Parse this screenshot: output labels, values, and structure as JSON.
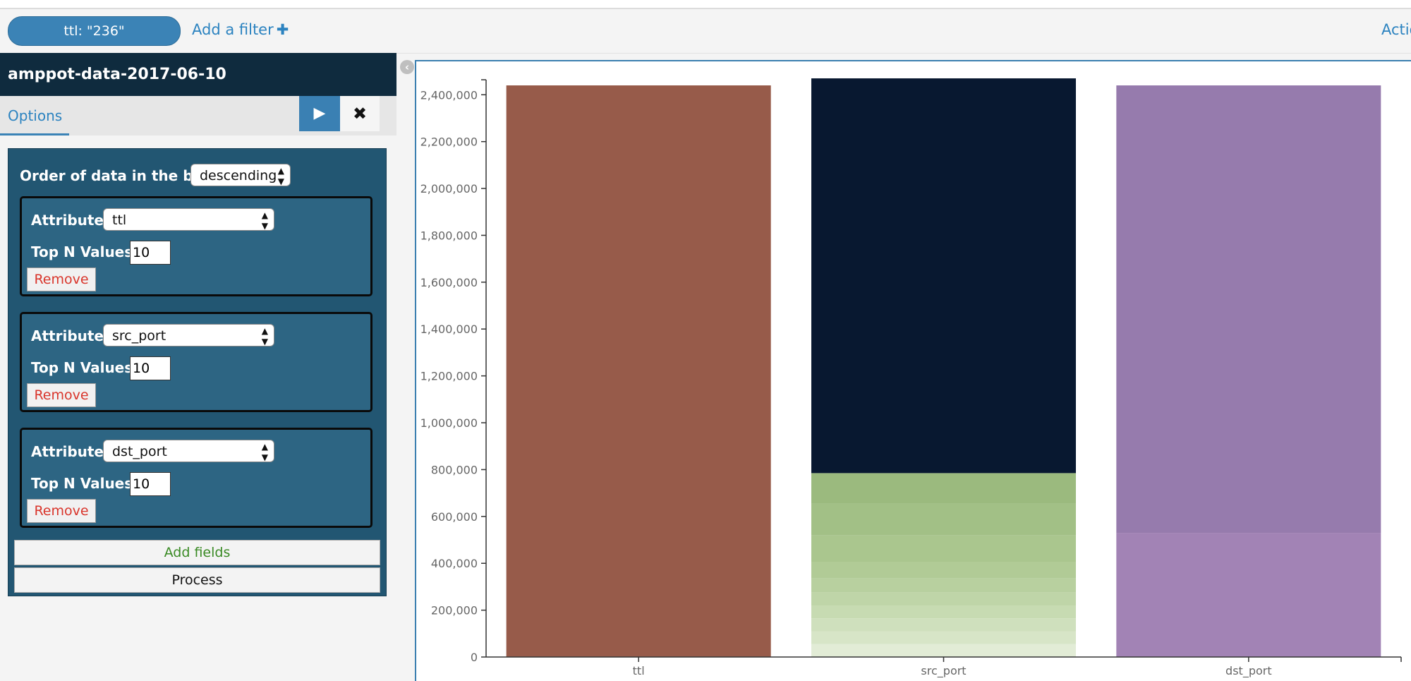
{
  "filter_bar": {
    "pill_label": "ttl: \"236\"",
    "add_filter_label": "Add a filter",
    "add_filter_icon": "plus-icon",
    "actions_label": "Actio"
  },
  "sidebar": {
    "index_title": "amppot-data-2017-06-10",
    "tab_options": "Options",
    "play_icon": "▶",
    "close_icon": "✖",
    "order_label": "Order of data in the bar:",
    "order_value": "descending",
    "attributes": [
      {
        "label": "Attribute:",
        "value": "ttl",
        "topn_label": "Top N Values:",
        "topn_value": "10",
        "remove_label": "Remove"
      },
      {
        "label": "Attribute:",
        "value": "src_port",
        "topn_label": "Top N Values:",
        "topn_value": "10",
        "remove_label": "Remove"
      },
      {
        "label": "Attribute:",
        "value": "dst_port",
        "topn_label": "Top N Values:",
        "topn_value": "10",
        "remove_label": "Remove"
      }
    ],
    "add_fields_label": "Add fields",
    "process_label": "Process"
  },
  "chart_data": {
    "type": "bar",
    "stacked": true,
    "categories": [
      "ttl",
      "src_port",
      "dst_port"
    ],
    "ylim": [
      0,
      2440000
    ],
    "yticks": [
      0,
      200000,
      400000,
      600000,
      800000,
      1000000,
      1200000,
      1400000,
      1600000,
      1800000,
      2000000,
      2200000,
      2400000
    ],
    "ytick_labels": [
      "0",
      "200,000",
      "400,000",
      "600,000",
      "800,000",
      "1,000,000",
      "1,200,000",
      "1,400,000",
      "1,600,000",
      "1,800,000",
      "2,000,000",
      "2,200,000",
      "2,400,000"
    ],
    "bars": [
      {
        "category": "ttl",
        "segments": [
          {
            "value": 2440000,
            "color": "#975b4a"
          }
        ]
      },
      {
        "category": "src_port",
        "segments": [
          {
            "value": 55000,
            "color": "#e2ecd6"
          },
          {
            "value": 55000,
            "color": "#d7e5c7"
          },
          {
            "value": 55000,
            "color": "#cfe0bd"
          },
          {
            "value": 55000,
            "color": "#c7dbb2"
          },
          {
            "value": 55000,
            "color": "#bfd5a8"
          },
          {
            "value": 60000,
            "color": "#b8d09f"
          },
          {
            "value": 70000,
            "color": "#b1cb96"
          },
          {
            "value": 115000,
            "color": "#aac68e"
          },
          {
            "value": 135000,
            "color": "#a2c086"
          },
          {
            "value": 130000,
            "color": "#9bba7e"
          },
          {
            "value": 1685000,
            "color": "#081830"
          }
        ]
      },
      {
        "category": "dst_port",
        "segments": [
          {
            "value": 530000,
            "color": "#a283b5"
          },
          {
            "value": 1910000,
            "color": "#967bad"
          }
        ]
      }
    ],
    "grid": false,
    "legend": "none"
  }
}
